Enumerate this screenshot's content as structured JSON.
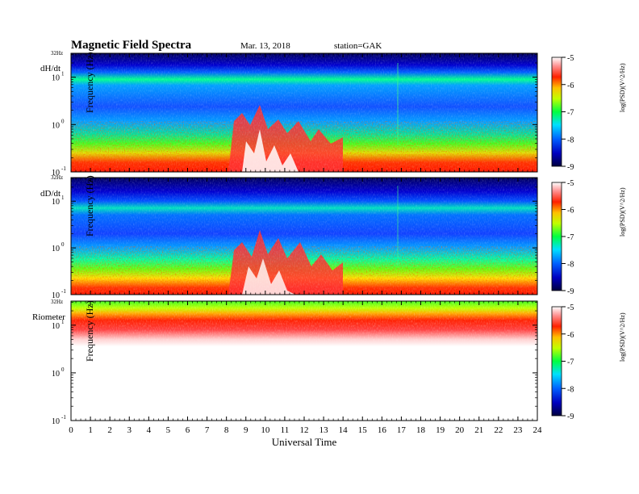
{
  "header": {
    "title": "Magnetic Field Spectra",
    "date": "Mar. 13, 2018",
    "station": "station=GAK"
  },
  "chart_data": {
    "type": "heatmap",
    "xlabel": "Universal Time",
    "x_ticks": [
      "0",
      "1",
      "2",
      "3",
      "4",
      "5",
      "6",
      "7",
      "8",
      "9",
      "10",
      "11",
      "12",
      "13",
      "14",
      "15",
      "16",
      "17",
      "18",
      "19",
      "20",
      "21",
      "22",
      "23",
      "24"
    ],
    "xlim": [
      0,
      24
    ],
    "ylabel": "Frequency (Hz)",
    "y_scale": "log",
    "y_top_label": "32Hz",
    "ylim": [
      0.1,
      32
    ],
    "colorbar": {
      "label": "log(PSD)(V^2/Hz)",
      "ticks": [
        "-5",
        "-6",
        "-7",
        "-8",
        "-9"
      ],
      "range": [
        -9,
        -5
      ],
      "colors": [
        "#000080",
        "#0000ff",
        "#00b4ff",
        "#00ff80",
        "#40ff00",
        "#ffff00",
        "#ff8000",
        "#ff0000",
        "#ffffff"
      ]
    },
    "panels": [
      {
        "name": "dH/dt"
      },
      {
        "name": "dD/dt"
      },
      {
        "name": "Riometer"
      }
    ]
  }
}
